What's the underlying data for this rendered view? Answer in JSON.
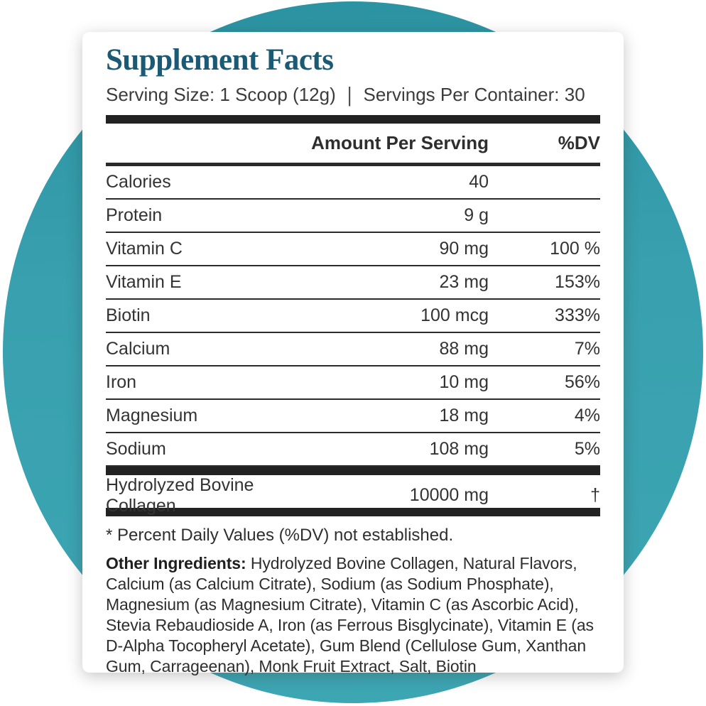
{
  "panel": {
    "title": "Supplement Facts",
    "serving_size": "Serving Size: 1 Scoop (12g)",
    "separator": "|",
    "servings_per_container": "Servings Per Container: 30",
    "header": {
      "amount_label": "Amount Per Serving",
      "dv_label": "%DV"
    },
    "rows": [
      {
        "name": "Calories",
        "amount": "40",
        "dv": ""
      },
      {
        "name": "Protein",
        "amount": "9 g",
        "dv": ""
      },
      {
        "name": "Vitamin C",
        "amount": "90 mg",
        "dv": "100 %"
      },
      {
        "name": "Vitamin E",
        "amount": "23 mg",
        "dv": "153%"
      },
      {
        "name": "Biotin",
        "amount": "100 mcg",
        "dv": "333%"
      },
      {
        "name": "Calcium",
        "amount": "88 mg",
        "dv": "7%"
      },
      {
        "name": "Iron",
        "amount": "10 mg",
        "dv": "56%"
      },
      {
        "name": "Magnesium",
        "amount": "18 mg",
        "dv": "4%"
      },
      {
        "name": "Sodium",
        "amount": "108 mg",
        "dv": "5%"
      }
    ],
    "featured_row": {
      "name": "Hydrolyzed Bovine Collagen",
      "amount": "10000 mg",
      "dv": "†"
    },
    "footnote": "* Percent Daily Values (%DV) not established.",
    "other_ingredients_label": "Other Ingredients:",
    "other_ingredients_text": " Hydrolyzed Bovine Collagen, Natural Flavors, Calcium (as Calcium Citrate), Sodium (as Sodium Phosphate), Magnesium (as Magnesium Citrate), Vitamin C (as Ascorbic Acid), Stevia Rebaudioside A, Iron (as Ferrous Bisglycinate), Vitamin E (as D-Alpha Tocopheryl Acetate), Gum Blend (Cellulose Gum, Xanthan Gum, Carrageenan), Monk Fruit Extract, Salt, Biotin"
  },
  "colors": {
    "circle_teal": "#3aa2b0",
    "circle_teal_dark": "#2b92a1",
    "title_teal": "#1a5a74",
    "text_dark": "#333333",
    "rule_dark": "#222222"
  }
}
